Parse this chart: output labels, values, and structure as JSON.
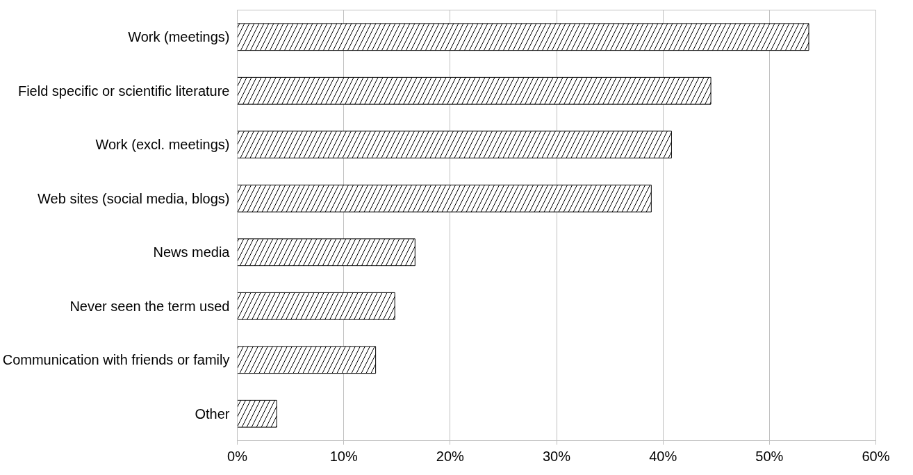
{
  "chart_data": {
    "type": "bar",
    "orientation": "horizontal",
    "categories": [
      "Work (meetings)",
      "Field specific or scientific literature",
      "Work (excl. meetings)",
      "Web sites (social media, blogs)",
      "News media",
      "Never seen the term used",
      "Communication with friends or family",
      "Other"
    ],
    "values": [
      53.7,
      44.5,
      40.8,
      38.9,
      16.7,
      14.8,
      13.0,
      3.7
    ],
    "color": "#ffffff",
    "xlim": [
      0,
      60
    ],
    "xticks": [
      {
        "value": 0,
        "label": "0%"
      },
      {
        "value": 10,
        "label": "10%"
      },
      {
        "value": 20,
        "label": "20%"
      },
      {
        "value": 30,
        "label": "30%"
      },
      {
        "value": 40,
        "label": "40%"
      },
      {
        "value": 50,
        "label": "50%"
      },
      {
        "value": 60,
        "label": "60%"
      }
    ],
    "grid": "x"
  }
}
